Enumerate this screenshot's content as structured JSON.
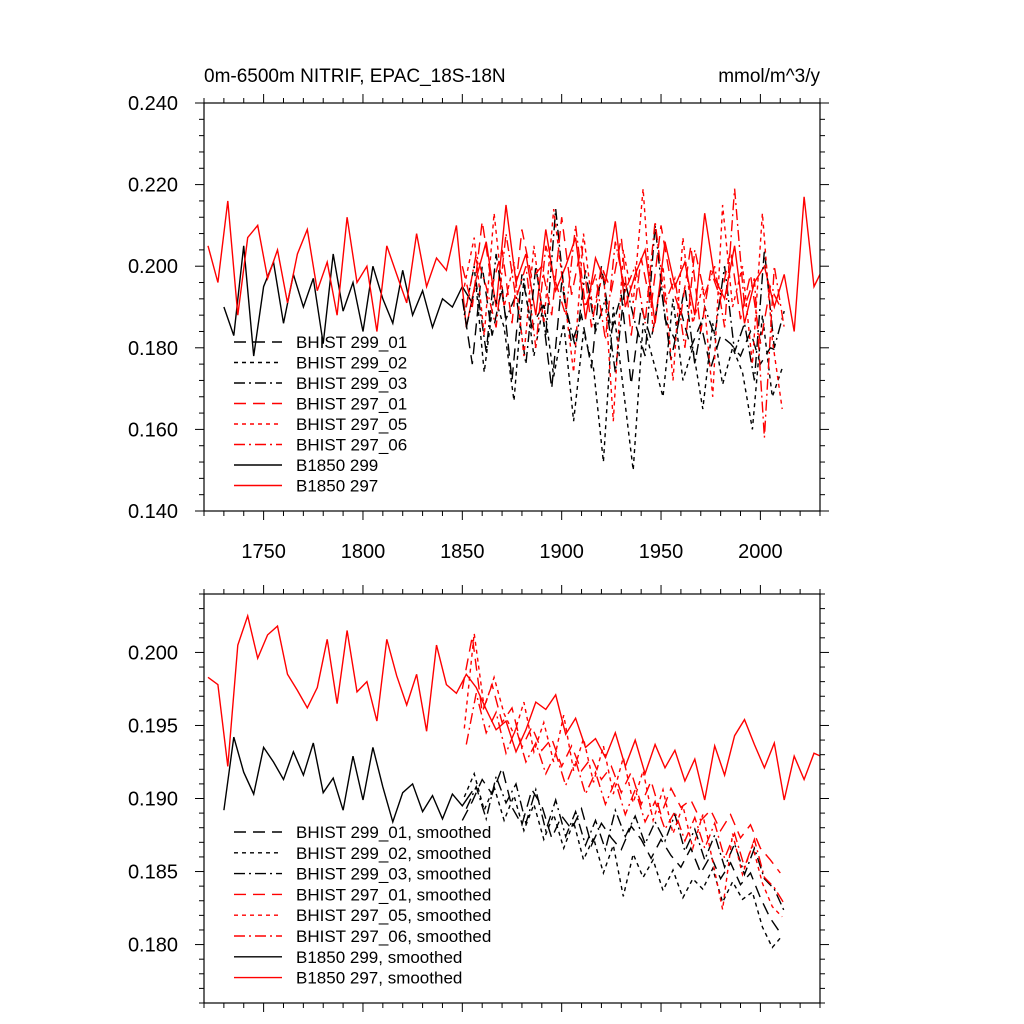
{
  "chart_data": [
    {
      "type": "line",
      "title_left": "0m-6500m NITRIF, EPAC_18S-18N",
      "title_right": "mmol/m^3/y",
      "xlabel": "",
      "ylabel": "",
      "xlim": [
        1720,
        2030
      ],
      "ylim": [
        0.14,
        0.24
      ],
      "xticks": [
        "1750",
        "1800",
        "1850",
        "1900",
        "1950",
        "2000"
      ],
      "yticks": [
        "0.140",
        "0.160",
        "0.180",
        "0.200",
        "0.220",
        "0.240"
      ],
      "legend": {
        "position": "lower-left",
        "entries": [
          {
            "label": "BHIST 299_01",
            "color": "#000000",
            "dash": "long-dash"
          },
          {
            "label": "BHIST 299_02",
            "color": "#000000",
            "dash": "short-dash"
          },
          {
            "label": "BHIST 299_03",
            "color": "#000000",
            "dash": "dash-dot"
          },
          {
            "label": "BHIST 297_01",
            "color": "#ff0000",
            "dash": "long-dash"
          },
          {
            "label": "BHIST 297_05",
            "color": "#ff0000",
            "dash": "short-dash"
          },
          {
            "label": "BHIST 297_06",
            "color": "#ff0000",
            "dash": "dash-dot"
          },
          {
            "label": "B1850 299",
            "color": "#000000",
            "dash": "solid"
          },
          {
            "label": "B1850 297",
            "color": "#ff0000",
            "dash": "solid"
          }
        ]
      },
      "series": [
        {
          "name": "B1850 299",
          "color": "#000000",
          "dash": "solid",
          "x_start": 1730,
          "x_step": 5,
          "values": [
            0.19,
            0.183,
            0.205,
            0.178,
            0.195,
            0.201,
            0.186,
            0.198,
            0.19,
            0.197,
            0.181,
            0.203,
            0.189,
            0.196,
            0.184,
            0.2,
            0.192,
            0.186,
            0.199,
            0.188,
            0.194,
            0.185,
            0.192,
            0.19,
            0.195,
            0.191
          ]
        },
        {
          "name": "B1850 297",
          "color": "#ff0000",
          "dash": "solid",
          "x_start": 1722,
          "x_step": 5,
          "values": [
            0.205,
            0.196,
            0.216,
            0.188,
            0.207,
            0.21,
            0.197,
            0.204,
            0.191,
            0.203,
            0.209,
            0.194,
            0.201,
            0.188,
            0.212,
            0.196,
            0.2,
            0.184,
            0.205,
            0.198,
            0.191,
            0.208,
            0.195,
            0.202,
            0.199,
            0.21,
            0.185,
            0.197,
            0.206,
            0.19,
            0.215,
            0.196,
            0.203,
            0.188,
            0.209,
            0.194,
            0.2,
            0.207,
            0.187,
            0.202,
            0.196,
            0.211,
            0.19,
            0.198,
            0.204,
            0.186,
            0.206,
            0.195,
            0.201,
            0.188,
            0.213,
            0.197,
            0.192,
            0.205,
            0.186,
            0.196,
            0.2,
            0.19,
            0.198,
            0.184,
            0.217,
            0.195,
            0.2
          ]
        },
        {
          "name": "BHIST 299_01",
          "color": "#000000",
          "dash": "long-dash",
          "x_start": 1850,
          "x_step": 5,
          "values": [
            0.192,
            0.176,
            0.2,
            0.183,
            0.195,
            0.172,
            0.198,
            0.185,
            0.19,
            0.17,
            0.196,
            0.181,
            0.188,
            0.175,
            0.2,
            0.184,
            0.193,
            0.171,
            0.19,
            0.182,
            0.195,
            0.177,
            0.189,
            0.18,
            0.186,
            0.175,
            0.183,
            0.181,
            0.178,
            0.184,
            0.176,
            0.18,
            0.179
          ]
        },
        {
          "name": "BHIST 299_02",
          "color": "#000000",
          "dash": "short-dash",
          "x_start": 1851,
          "x_step": 5,
          "values": [
            0.188,
            0.2,
            0.174,
            0.193,
            0.185,
            0.167,
            0.197,
            0.178,
            0.191,
            0.173,
            0.186,
            0.162,
            0.184,
            0.175,
            0.152,
            0.19,
            0.17,
            0.15,
            0.186,
            0.177,
            0.168,
            0.192,
            0.172,
            0.18,
            0.165,
            0.186,
            0.171,
            0.18,
            0.174,
            0.16,
            0.188,
            0.168,
            0.175
          ]
        },
        {
          "name": "BHIST 299_03",
          "color": "#000000",
          "dash": "dash-dot",
          "x_start": 1852,
          "x_step": 5,
          "values": [
            0.185,
            0.196,
            0.179,
            0.203,
            0.187,
            0.193,
            0.176,
            0.2,
            0.183,
            0.214,
            0.19,
            0.18,
            0.199,
            0.184,
            0.192,
            0.174,
            0.196,
            0.186,
            0.178,
            0.21,
            0.187,
            0.182,
            0.195,
            0.176,
            0.19,
            0.183,
            0.2,
            0.179,
            0.186,
            0.172,
            0.204,
            0.18,
            0.189
          ]
        },
        {
          "name": "BHIST 297_01",
          "color": "#ff0000",
          "dash": "long-dash",
          "x_start": 1850,
          "x_step": 5,
          "values": [
            0.2,
            0.19,
            0.211,
            0.195,
            0.204,
            0.186,
            0.209,
            0.197,
            0.2,
            0.188,
            0.212,
            0.193,
            0.205,
            0.185,
            0.2,
            0.194,
            0.207,
            0.183,
            0.202,
            0.19,
            0.21,
            0.196,
            0.188,
            0.205,
            0.184,
            0.199,
            0.192,
            0.204,
            0.187,
            0.198,
            0.181,
            0.195,
            0.19
          ]
        },
        {
          "name": "BHIST 297_05",
          "color": "#ff0000",
          "dash": "short-dash",
          "x_start": 1851,
          "x_step": 5,
          "values": [
            0.195,
            0.207,
            0.183,
            0.213,
            0.19,
            0.201,
            0.178,
            0.205,
            0.186,
            0.214,
            0.194,
            0.174,
            0.208,
            0.188,
            0.199,
            0.162,
            0.204,
            0.191,
            0.219,
            0.184,
            0.2,
            0.172,
            0.207,
            0.186,
            0.195,
            0.168,
            0.215,
            0.19,
            0.2,
            0.176,
            0.213,
            0.182,
            0.165
          ]
        },
        {
          "name": "BHIST 297_06",
          "color": "#ff0000",
          "dash": "dash-dot",
          "x_start": 1852,
          "x_step": 5,
          "values": [
            0.19,
            0.203,
            0.195,
            0.185,
            0.208,
            0.192,
            0.2,
            0.18,
            0.205,
            0.196,
            0.188,
            0.21,
            0.19,
            0.198,
            0.182,
            0.206,
            0.194,
            0.2,
            0.186,
            0.211,
            0.191,
            0.197,
            0.18,
            0.204,
            0.193,
            0.2,
            0.185,
            0.219,
            0.19,
            0.197,
            0.158,
            0.2,
            0.185
          ]
        }
      ]
    },
    {
      "type": "line",
      "xlabel": "",
      "ylabel": "",
      "xlim": [
        1720,
        2030
      ],
      "ylim": [
        0.176,
        0.204
      ],
      "yticks": [
        "0.180",
        "0.185",
        "0.190",
        "0.195",
        "0.200"
      ],
      "legend": {
        "position": "lower-left",
        "entries": [
          {
            "label": "BHIST 299_01, smoothed",
            "color": "#000000",
            "dash": "long-dash"
          },
          {
            "label": "BHIST 299_02, smoothed",
            "color": "#000000",
            "dash": "short-dash"
          },
          {
            "label": "BHIST 299_03, smoothed",
            "color": "#000000",
            "dash": "dash-dot"
          },
          {
            "label": "BHIST 297_01, smoothed",
            "color": "#ff0000",
            "dash": "long-dash"
          },
          {
            "label": "BHIST 297_05, smoothed",
            "color": "#ff0000",
            "dash": "short-dash"
          },
          {
            "label": "BHIST 297_06, smoothed",
            "color": "#ff0000",
            "dash": "dash-dot"
          },
          {
            "label": "B1850 299, smoothed",
            "color": "#000000",
            "dash": "solid"
          },
          {
            "label": "B1850 297, smoothed",
            "color": "#ff0000",
            "dash": "solid"
          }
        ]
      },
      "series": [
        {
          "name": "B1850 299, smoothed",
          "color": "#000000",
          "dash": "solid",
          "x_start": 1730,
          "x_step": 5,
          "values": [
            0.1892,
            0.1942,
            0.1918,
            0.1903,
            0.1935,
            0.1925,
            0.1913,
            0.1932,
            0.1916,
            0.1938,
            0.1904,
            0.1914,
            0.1892,
            0.1929,
            0.1899,
            0.1935,
            0.1908,
            0.1884,
            0.1904,
            0.191,
            0.1891,
            0.1902,
            0.1886,
            0.1903,
            0.1895,
            0.1905
          ]
        },
        {
          "name": "B1850 297, smoothed",
          "color": "#ff0000",
          "dash": "solid",
          "x_start": 1722,
          "x_step": 5,
          "values": [
            0.1983,
            0.1978,
            0.1922,
            0.2005,
            0.2025,
            0.1996,
            0.2012,
            0.2018,
            0.1985,
            0.1974,
            0.1962,
            0.1976,
            0.2009,
            0.1965,
            0.2015,
            0.1973,
            0.198,
            0.1953,
            0.2009,
            0.1984,
            0.1964,
            0.1985,
            0.1946,
            0.2005,
            0.1978,
            0.1972,
            0.1985,
            0.1976,
            0.1961,
            0.1947,
            0.1953,
            0.1932,
            0.1947,
            0.1966,
            0.1961,
            0.1971,
            0.1944,
            0.1955,
            0.1935,
            0.1941,
            0.1928,
            0.1945,
            0.1922,
            0.194,
            0.1917,
            0.1937,
            0.1921,
            0.1933,
            0.1912,
            0.1927,
            0.1899,
            0.1936,
            0.1916,
            0.1943,
            0.1954,
            0.1937,
            0.1921,
            0.1938,
            0.1899,
            0.1929,
            0.1913,
            0.1931,
            0.1928
          ]
        },
        {
          "name": "BHIST 299_01, smoothed",
          "color": "#000000",
          "dash": "long-dash",
          "x_start": 1850,
          "x_step": 5,
          "values": [
            0.1885,
            0.1898,
            0.1913,
            0.1903,
            0.1921,
            0.1894,
            0.1882,
            0.1906,
            0.1895,
            0.1873,
            0.1888,
            0.1879,
            0.1893,
            0.1868,
            0.1883,
            0.1873,
            0.1865,
            0.1881,
            0.1872,
            0.1859,
            0.1872,
            0.1861,
            0.1853,
            0.1866,
            0.1849,
            0.1861,
            0.1845,
            0.1856,
            0.1841,
            0.1849,
            0.1832,
            0.1818,
            0.1808
          ]
        },
        {
          "name": "BHIST 299_02, smoothed",
          "color": "#000000",
          "dash": "short-dash",
          "x_start": 1851,
          "x_step": 5,
          "values": [
            0.1901,
            0.1917,
            0.1892,
            0.1908,
            0.1885,
            0.1902,
            0.1878,
            0.1896,
            0.1872,
            0.1889,
            0.1866,
            0.1884,
            0.1858,
            0.1873,
            0.1849,
            0.1868,
            0.1833,
            0.1862,
            0.1846,
            0.1858,
            0.1837,
            0.1851,
            0.1832,
            0.1845,
            0.1838,
            0.1852,
            0.1829,
            0.1843,
            0.1831,
            0.1836,
            0.1812,
            0.1798,
            0.1806
          ]
        },
        {
          "name": "BHIST 299_03, smoothed",
          "color": "#000000",
          "dash": "dash-dot",
          "x_start": 1852,
          "x_step": 5,
          "values": [
            0.1893,
            0.1908,
            0.1886,
            0.1915,
            0.1897,
            0.191,
            0.1883,
            0.1906,
            0.1878,
            0.1899,
            0.1874,
            0.1891,
            0.1868,
            0.1885,
            0.1865,
            0.1892,
            0.1874,
            0.1888,
            0.1869,
            0.1884,
            0.1871,
            0.1889,
            0.1864,
            0.1879,
            0.1858,
            0.1875,
            0.1853,
            0.1869,
            0.1848,
            0.1866,
            0.1845,
            0.1838,
            0.1823
          ]
        },
        {
          "name": "BHIST 297_01, smoothed",
          "color": "#ff0000",
          "dash": "long-dash",
          "x_start": 1850,
          "x_step": 5,
          "values": [
            0.1975,
            0.2011,
            0.1959,
            0.1978,
            0.1952,
            0.1962,
            0.1935,
            0.1949,
            0.1933,
            0.1941,
            0.1922,
            0.1936,
            0.1919,
            0.1928,
            0.1913,
            0.1922,
            0.1904,
            0.1918,
            0.1896,
            0.1912,
            0.1889,
            0.1907,
            0.1894,
            0.1899,
            0.1885,
            0.1892,
            0.1878,
            0.1889,
            0.1873,
            0.1882,
            0.1866,
            0.1858,
            0.1849
          ]
        },
        {
          "name": "BHIST 297_05, smoothed",
          "color": "#ff0000",
          "dash": "short-dash",
          "x_start": 1851,
          "x_step": 5,
          "values": [
            0.1948,
            0.2013,
            0.1962,
            0.1983,
            0.1958,
            0.1944,
            0.1966,
            0.1932,
            0.1952,
            0.1925,
            0.1957,
            0.1919,
            0.1941,
            0.1911,
            0.1936,
            0.1903,
            0.1928,
            0.1897,
            0.1919,
            0.1885,
            0.1906,
            0.1876,
            0.1895,
            0.1866,
            0.1889,
            0.1857,
            0.1824,
            0.1876,
            0.1848,
            0.1868,
            0.1842,
            0.1826,
            0.1819
          ]
        },
        {
          "name": "BHIST 297_06, smoothed",
          "color": "#ff0000",
          "dash": "dash-dot",
          "x_start": 1852,
          "x_step": 5,
          "values": [
            0.1937,
            0.1972,
            0.1945,
            0.1959,
            0.1931,
            0.1948,
            0.1925,
            0.1938,
            0.1917,
            0.1931,
            0.1909,
            0.1926,
            0.1903,
            0.1918,
            0.1896,
            0.1912,
            0.1889,
            0.1906,
            0.1884,
            0.1898,
            0.1879,
            0.1891,
            0.1871,
            0.1887,
            0.1866,
            0.1883,
            0.1859,
            0.1876,
            0.1853,
            0.1872,
            0.1846,
            0.1839,
            0.1828
          ]
        }
      ]
    }
  ]
}
